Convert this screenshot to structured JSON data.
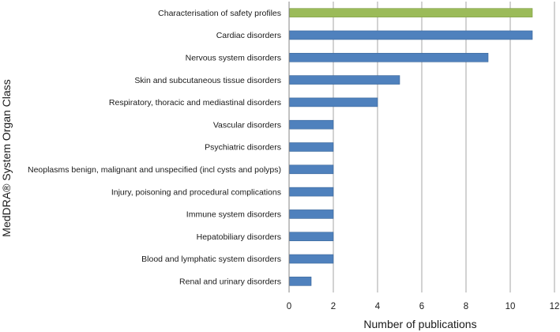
{
  "chart_data": {
    "type": "bar",
    "orientation": "horizontal",
    "title": "",
    "xlabel": "Number of publications",
    "ylabel": "MedDRA® System Organ Class",
    "xlim": [
      0,
      12
    ],
    "xticks": [
      0,
      2,
      4,
      6,
      8,
      10,
      12
    ],
    "grid": true,
    "categories": [
      "Characterisation of safety profiles",
      "Cardiac disorders",
      "Nervous system disorders",
      "Skin and subcutaneous tissue disorders",
      "Respiratory, thoracic and mediastinal disorders",
      "Vascular disorders",
      "Psychiatric disorders",
      "Neoplasms benign, malignant and unspecified (incl cysts and polyps)",
      "Injury, poisoning and procedural complications",
      "Immune system disorders",
      "Hepatobiliary disorders",
      "Blood and lymphatic system disorders",
      "Renal and urinary disorders"
    ],
    "values": [
      11,
      11,
      9,
      5,
      4,
      2,
      2,
      2,
      2,
      2,
      2,
      2,
      1
    ],
    "bar_colors": [
      "#9bbb59",
      "#4f81bd",
      "#4f81bd",
      "#4f81bd",
      "#4f81bd",
      "#4f81bd",
      "#4f81bd",
      "#4f81bd",
      "#4f81bd",
      "#4f81bd",
      "#4f81bd",
      "#4f81bd",
      "#4f81bd"
    ],
    "colors": {
      "gridline": "#a6a6a6",
      "axis": "#868686",
      "bar_edge": "#3a6699"
    }
  }
}
